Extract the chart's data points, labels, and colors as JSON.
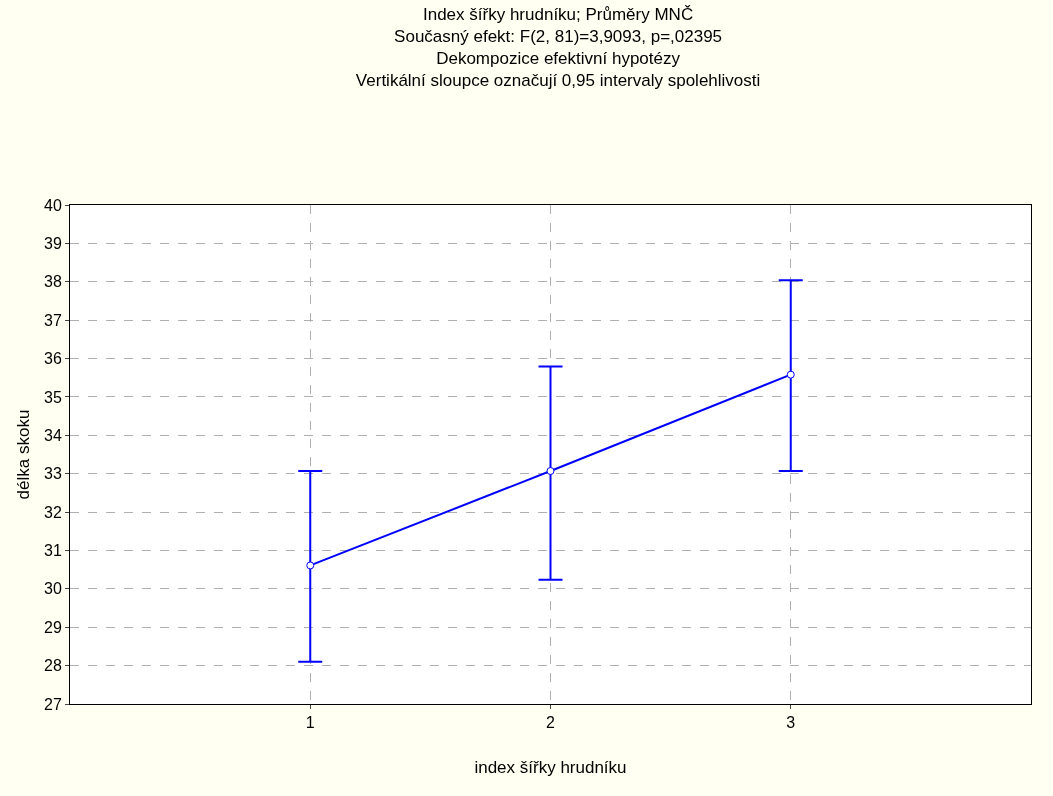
{
  "chart_data": {
    "type": "line",
    "title": "Index šířky hrudníku; Průměry MNČ",
    "subtitle": "Současný efekt: F(2, 81)=3,9093, p=,02395\nDekompozice efektivní hypotézy\nVertikální sloupce označují 0,95 intervaly spolehlivosti",
    "xlabel": "index šířky hrudníku",
    "ylabel": "délka skoku",
    "x": [
      1,
      2,
      3
    ],
    "series": [
      {
        "color": "#0000ff",
        "values": [
          30.61,
          33.07,
          35.58
        ],
        "errors": [
          [
            28.1,
            33.07
          ],
          [
            30.24,
            35.79
          ],
          [
            33.07,
            38.04
          ]
        ]
      }
    ],
    "xlim": [
      0,
      4
    ],
    "xticks": [
      1,
      2,
      3
    ],
    "ylim": [
      27,
      40
    ],
    "yticks": [
      27,
      28,
      29,
      30,
      31,
      32,
      33,
      34,
      35,
      36,
      37,
      38,
      39,
      40
    ],
    "grid": true,
    "legend": false,
    "marker": "circle",
    "line_style": "solid"
  }
}
